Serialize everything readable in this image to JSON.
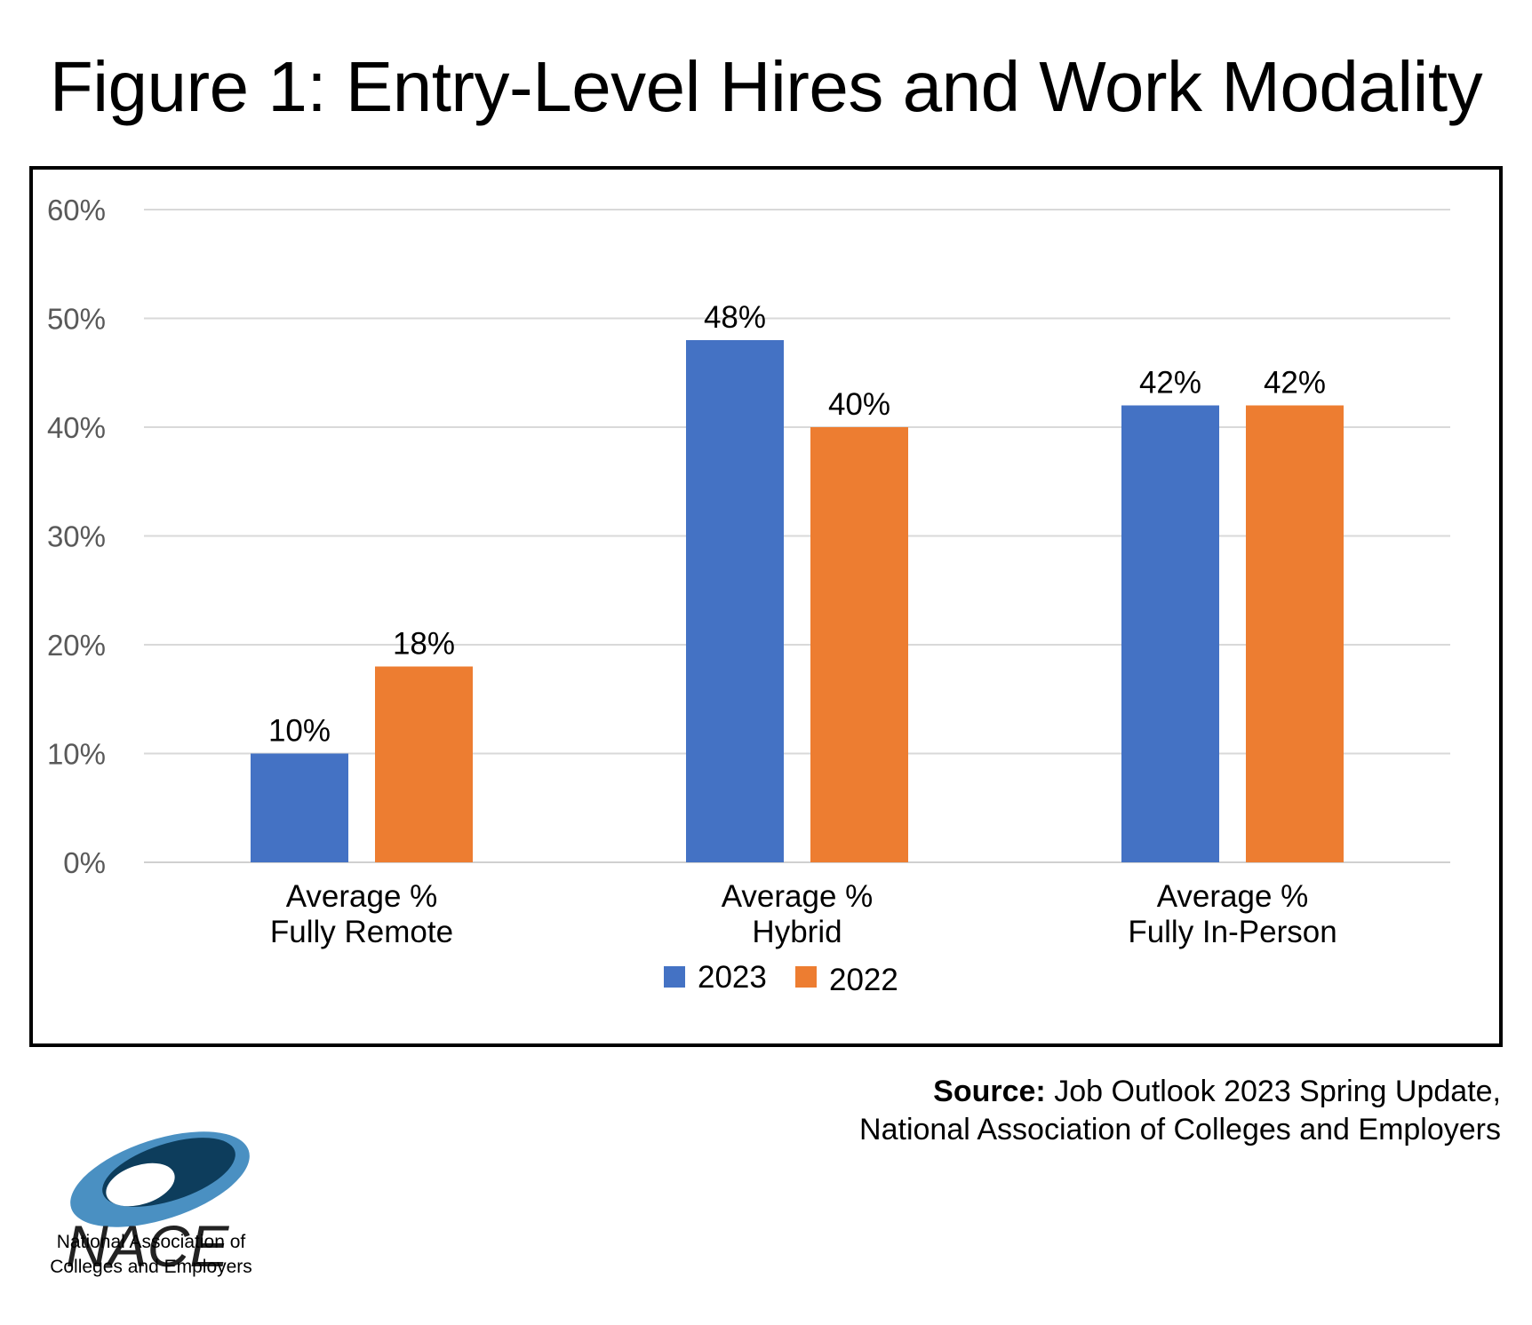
{
  "title": "Figure 1: Entry-Level Hires and Work Modality",
  "source": {
    "label": "Source:",
    "line1": "Job Outlook 2023 Spring Update,",
    "line2": "National Association of Colleges and Employers"
  },
  "logo": {
    "wordmark": "NACE",
    "line1": "National Association of",
    "line2": "Colleges and Employers"
  },
  "colors": {
    "series_2023": "#4472c4",
    "series_2022": "#ed7d31",
    "grid": "#d9d9d9",
    "axis_text": "#595959"
  },
  "chart_data": {
    "type": "bar",
    "title": "Figure 1: Entry-Level Hires and Work Modality",
    "categories": [
      [
        "Average %",
        "Fully Remote"
      ],
      [
        "Average %",
        "Hybrid"
      ],
      [
        "Average %",
        "Fully In-Person"
      ]
    ],
    "series": [
      {
        "name": "2023",
        "values": [
          10,
          48,
          42
        ],
        "labels": [
          "10%",
          "48%",
          "42%"
        ]
      },
      {
        "name": "2022",
        "values": [
          18,
          40,
          42
        ],
        "labels": [
          "18%",
          "40%",
          "42%"
        ]
      }
    ],
    "ylim": [
      0,
      60
    ],
    "yticks": [
      "0%",
      "10%",
      "20%",
      "30%",
      "40%",
      "50%",
      "60%"
    ],
    "ytick_values": [
      0,
      10,
      20,
      30,
      40,
      50,
      60
    ],
    "grid": true,
    "legend": "bottom",
    "xlabel": "",
    "ylabel": ""
  }
}
